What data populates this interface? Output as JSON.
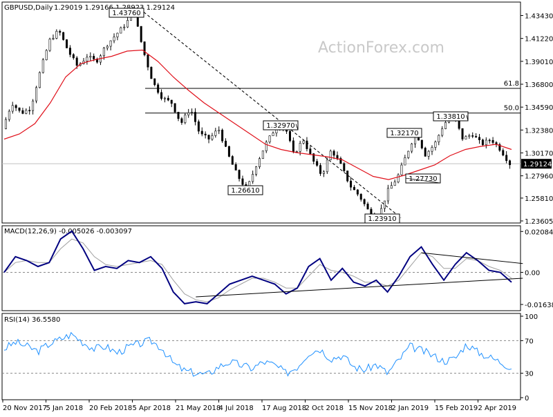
{
  "chart_data": [
    {
      "type": "candlestick",
      "title": "GBPUSD,Daily",
      "ohlc_header": "1.29019 1.29166 1.28923 1.29124",
      "symbol": "GBPUSD",
      "timeframe": "Daily",
      "watermark": "ActionForex.com",
      "y_ticks": [
        "1.43430",
        "1.41220",
        "1.39010",
        "1.36800",
        "1.34590",
        "1.32380",
        "1.30170",
        "1.27960",
        "1.25810",
        "1.23605"
      ],
      "ylim": [
        1.23605,
        1.4453
      ],
      "current_price": "1.29124",
      "fib_levels": [
        {
          "label": "61.8",
          "value": 1.364
        },
        {
          "label": "50.0",
          "value": 1.3402
        }
      ],
      "swing_labels": [
        {
          "text": "1.43760",
          "value": 1.4376
        },
        {
          "text": "1.32970",
          "value": 1.3297
        },
        {
          "text": "1.26610",
          "value": 1.2661
        },
        {
          "text": "1.23910",
          "value": 1.2391
        },
        {
          "text": "1.27730",
          "value": 1.2773
        },
        {
          "text": "1.32170",
          "value": 1.3217
        },
        {
          "text": "1.33810",
          "value": 1.3381
        }
      ],
      "price_path": [
        1.325,
        1.35,
        1.34,
        1.345,
        1.38,
        1.41,
        1.42,
        1.4,
        1.385,
        1.395,
        1.39,
        1.405,
        1.415,
        1.425,
        1.4376,
        1.4,
        1.37,
        1.355,
        1.35,
        1.33,
        1.345,
        1.32,
        1.315,
        1.325,
        1.3,
        1.28,
        1.2661,
        1.29,
        1.31,
        1.325,
        1.3297,
        1.3,
        1.315,
        1.295,
        1.28,
        1.305,
        1.29,
        1.27,
        1.26,
        1.245,
        1.2391,
        1.265,
        1.2773,
        1.3,
        1.3217,
        1.3,
        1.31,
        1.33,
        1.3381,
        1.315,
        1.32,
        1.31,
        1.315,
        1.305,
        1.2912
      ],
      "ma_path": [
        1.315,
        1.32,
        1.33,
        1.35,
        1.375,
        1.388,
        1.392,
        1.395,
        1.4,
        1.401,
        1.39,
        1.375,
        1.362,
        1.35,
        1.34,
        1.33,
        1.32,
        1.31,
        1.305,
        1.302,
        1.3,
        1.298,
        1.295,
        1.287,
        1.279,
        1.276,
        1.28,
        1.285,
        1.29,
        1.299,
        1.305,
        1.308,
        1.31,
        1.305
      ],
      "x_labels": [
        "20 Nov 2017",
        "5 Jan 2018",
        "20 Feb 2018",
        "5 Apr 2018",
        "21 May 2018",
        "4 Jul 2018",
        "17 Aug 2018",
        "2 Oct 2018",
        "15 Nov 2018",
        "2 Jan 2019",
        "15 Feb 2019",
        "2 Apr 2019"
      ]
    },
    {
      "type": "line",
      "title": "MACD(12,26,9) -0.005026 -0.003097",
      "y_ticks": [
        "0.020848",
        "0.00",
        "-0.016389"
      ],
      "ylim": [
        -0.0185,
        0.022
      ],
      "series": [
        {
          "values": [
            0.0,
            0.008,
            0.006,
            0.003,
            0.005,
            0.017,
            0.021,
            0.012,
            0.001,
            0.003,
            0.002,
            0.006,
            0.005,
            0.008,
            0.002,
            -0.01,
            -0.016,
            -0.015,
            -0.016,
            -0.011,
            -0.006,
            -0.004,
            -0.002,
            -0.004,
            -0.006,
            -0.011,
            -0.008,
            0.003,
            0.007,
            -0.004,
            0.002,
            -0.005,
            -0.007,
            -0.004,
            -0.01,
            -0.002,
            0.008,
            0.013,
            0.004,
            -0.004,
            0.004,
            0.01,
            0.006,
            0.001,
            0.0,
            -0.005
          ]
        },
        {
          "values": [
            0.0,
            0.005,
            0.006,
            0.005,
            0.005,
            0.012,
            0.017,
            0.015,
            0.008,
            0.004,
            0.003,
            0.004,
            0.005,
            0.006,
            0.004,
            -0.004,
            -0.011,
            -0.014,
            -0.015,
            -0.013,
            -0.009,
            -0.006,
            -0.003,
            -0.003,
            -0.005,
            -0.008,
            -0.008,
            -0.002,
            0.004,
            0.001,
            0.0,
            -0.002,
            -0.005,
            -0.005,
            -0.007,
            -0.004,
            0.003,
            0.01,
            0.008,
            0.002,
            0.002,
            0.007,
            0.006,
            0.003,
            0.001,
            -0.003
          ]
        }
      ],
      "trendlines": [
        {
          "from": [
            17,
            -0.0125
          ],
          "to": [
            46,
            -0.003
          ]
        },
        {
          "from": [
            37,
            0.01
          ],
          "to": [
            46,
            0.0045
          ]
        }
      ]
    },
    {
      "type": "line",
      "title": "RSI(14) 36.5580",
      "y_ticks": [
        "100",
        "70",
        "30",
        "0"
      ],
      "ylim": [
        0,
        100
      ],
      "reference_levels": [
        70,
        30
      ],
      "series": [
        {
          "values": [
            60,
            68,
            63,
            57,
            66,
            72,
            78,
            68,
            60,
            63,
            55,
            62,
            66,
            70,
            61,
            42,
            33,
            30,
            28,
            38,
            44,
            40,
            36,
            44,
            40,
            30,
            38,
            55,
            60,
            48,
            52,
            38,
            34,
            41,
            30,
            46,
            63,
            58,
            52,
            45,
            48,
            66,
            56,
            50,
            44,
            37
          ]
        }
      ]
    }
  ]
}
